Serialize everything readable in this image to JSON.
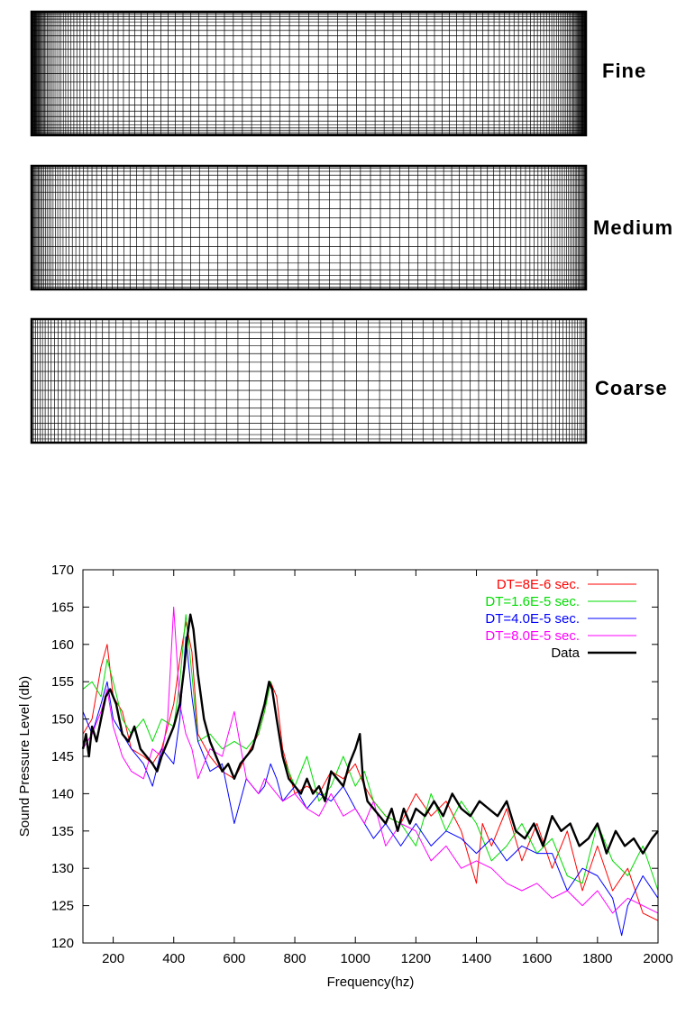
{
  "meshes": [
    {
      "label": "Fine",
      "nx": 140,
      "ny": 26,
      "stretch": 2.4
    },
    {
      "label": "Medium",
      "nx": 110,
      "ny": 20,
      "stretch": 2.0
    },
    {
      "label": "Coarse",
      "nx": 80,
      "ny": 18,
      "stretch": 1.6
    }
  ],
  "chart_data": {
    "type": "line",
    "title": "",
    "xlabel": "Frequency(hz)",
    "ylabel": "Sound Pressure Level (db)",
    "xlim": [
      100,
      2000
    ],
    "ylim": [
      120,
      170
    ],
    "xticks": [
      200,
      400,
      600,
      800,
      1000,
      1200,
      1400,
      1600,
      1800,
      2000
    ],
    "yticks": [
      120,
      125,
      130,
      135,
      140,
      145,
      150,
      155,
      160,
      165,
      170
    ],
    "legend_position": "top-right",
    "grid": false,
    "series": [
      {
        "name": "DT=8E-6 sec.",
        "color": "#ff0000",
        "width": 1,
        "x": [
          100,
          130,
          160,
          180,
          200,
          230,
          260,
          300,
          330,
          360,
          400,
          420,
          440,
          460,
          480,
          520,
          560,
          600,
          640,
          680,
          700,
          720,
          740,
          760,
          800,
          840,
          880,
          920,
          960,
          1000,
          1030,
          1060,
          1100,
          1150,
          1200,
          1250,
          1300,
          1350,
          1400,
          1420,
          1450,
          1500,
          1550,
          1600,
          1650,
          1700,
          1750,
          1800,
          1850,
          1900,
          1950,
          2000
        ],
        "y": [
          148,
          150,
          157,
          160,
          153,
          151,
          146,
          145,
          144,
          146,
          152,
          158,
          163,
          159,
          148,
          145,
          143,
          142,
          145,
          148,
          151,
          155,
          153,
          146,
          140,
          141,
          140,
          143,
          142,
          144,
          141,
          139,
          137,
          136,
          140,
          137,
          139,
          135,
          128,
          136,
          133,
          138,
          131,
          136,
          130,
          135,
          127,
          133,
          127,
          130,
          124,
          123
        ]
      },
      {
        "name": "DT=1.6E-5 sec.",
        "color": "#00dd00",
        "width": 1,
        "x": [
          100,
          130,
          160,
          180,
          200,
          230,
          260,
          300,
          330,
          360,
          400,
          420,
          440,
          460,
          480,
          520,
          560,
          600,
          640,
          680,
          700,
          720,
          740,
          760,
          800,
          840,
          880,
          920,
          960,
          1000,
          1030,
          1060,
          1100,
          1150,
          1200,
          1250,
          1300,
          1350,
          1400,
          1450,
          1500,
          1550,
          1600,
          1650,
          1700,
          1750,
          1800,
          1850,
          1900,
          1950,
          2000
        ],
        "y": [
          154,
          155,
          153,
          158,
          155,
          150,
          148,
          150,
          147,
          150,
          149,
          155,
          164,
          156,
          147,
          148,
          146,
          147,
          146,
          148,
          151,
          155,
          150,
          145,
          141,
          145,
          139,
          141,
          145,
          141,
          143,
          139,
          137,
          136,
          133,
          140,
          135,
          139,
          136,
          131,
          133,
          136,
          132,
          134,
          129,
          128,
          136,
          131,
          129,
          133,
          127
        ]
      },
      {
        "name": "DT=4.0E-5 sec.",
        "color": "#0000ff",
        "width": 1,
        "x": [
          100,
          130,
          160,
          180,
          200,
          230,
          260,
          300,
          330,
          360,
          400,
          420,
          440,
          460,
          480,
          520,
          560,
          600,
          640,
          680,
          700,
          720,
          740,
          760,
          800,
          840,
          880,
          920,
          960,
          1000,
          1030,
          1060,
          1100,
          1150,
          1200,
          1250,
          1300,
          1350,
          1400,
          1450,
          1500,
          1550,
          1600,
          1650,
          1700,
          1750,
          1800,
          1850,
          1880,
          1900,
          1950,
          2000
        ],
        "y": [
          151,
          148,
          152,
          155,
          150,
          148,
          146,
          144,
          141,
          146,
          144,
          150,
          161,
          153,
          147,
          143,
          144,
          136,
          142,
          140,
          141,
          144,
          142,
          139,
          141,
          138,
          140,
          139,
          141,
          138,
          136,
          134,
          136,
          133,
          136,
          133,
          135,
          134,
          132,
          134,
          131,
          133,
          132,
          132,
          127,
          130,
          129,
          126,
          121,
          125,
          129,
          126
        ]
      },
      {
        "name": "DT=8.0E-5 sec.",
        "color": "#ff00ff",
        "width": 1,
        "x": [
          100,
          130,
          160,
          180,
          200,
          230,
          260,
          300,
          330,
          360,
          380,
          400,
          420,
          440,
          460,
          480,
          520,
          560,
          600,
          640,
          680,
          700,
          720,
          740,
          760,
          800,
          840,
          880,
          920,
          960,
          1000,
          1030,
          1060,
          1100,
          1150,
          1200,
          1250,
          1300,
          1350,
          1400,
          1450,
          1500,
          1550,
          1600,
          1650,
          1700,
          1750,
          1800,
          1850,
          1900,
          1950,
          2000
        ],
        "y": [
          146,
          148,
          151,
          154,
          149,
          145,
          143,
          142,
          146,
          145,
          150,
          165,
          152,
          148,
          146,
          142,
          146,
          145,
          151,
          142,
          140,
          142,
          141,
          140,
          139,
          140,
          138,
          137,
          140,
          137,
          138,
          136,
          139,
          133,
          136,
          135,
          131,
          133,
          130,
          131,
          130,
          128,
          127,
          128,
          126,
          127,
          125,
          127,
          124,
          126,
          125,
          124
        ]
      },
      {
        "name": "Data",
        "color": "#000000",
        "width": 2.4,
        "x": [
          100,
          110,
          120,
          130,
          145,
          160,
          175,
          190,
          210,
          230,
          250,
          270,
          290,
          310,
          330,
          345,
          360,
          380,
          400,
          420,
          435,
          445,
          455,
          465,
          480,
          500,
          520,
          540,
          560,
          580,
          600,
          620,
          640,
          660,
          680,
          700,
          715,
          725,
          740,
          760,
          780,
          800,
          820,
          840,
          860,
          880,
          900,
          920,
          940,
          960,
          980,
          1000,
          1015,
          1025,
          1040,
          1060,
          1080,
          1100,
          1120,
          1140,
          1160,
          1180,
          1200,
          1230,
          1260,
          1290,
          1320,
          1350,
          1380,
          1410,
          1440,
          1470,
          1500,
          1530,
          1560,
          1590,
          1620,
          1650,
          1680,
          1710,
          1740,
          1770,
          1800,
          1830,
          1860,
          1890,
          1920,
          1950,
          1980,
          2000
        ],
        "y": [
          146,
          148,
          145,
          149,
          147,
          150,
          153,
          154,
          152,
          148,
          147,
          149,
          146,
          145,
          144,
          143,
          145,
          147,
          149,
          152,
          157,
          161,
          164,
          162,
          156,
          150,
          147,
          145,
          143,
          144,
          142,
          144,
          145,
          146,
          149,
          152,
          155,
          154,
          150,
          145,
          142,
          141,
          140,
          142,
          140,
          141,
          139,
          143,
          142,
          141,
          144,
          146,
          148,
          142,
          139,
          138,
          137,
          136,
          138,
          135,
          138,
          136,
          138,
          137,
          139,
          137,
          140,
          138,
          137,
          139,
          138,
          137,
          139,
          135,
          134,
          136,
          133,
          137,
          135,
          136,
          133,
          134,
          136,
          132,
          135,
          133,
          134,
          132,
          134,
          135
        ]
      }
    ]
  }
}
